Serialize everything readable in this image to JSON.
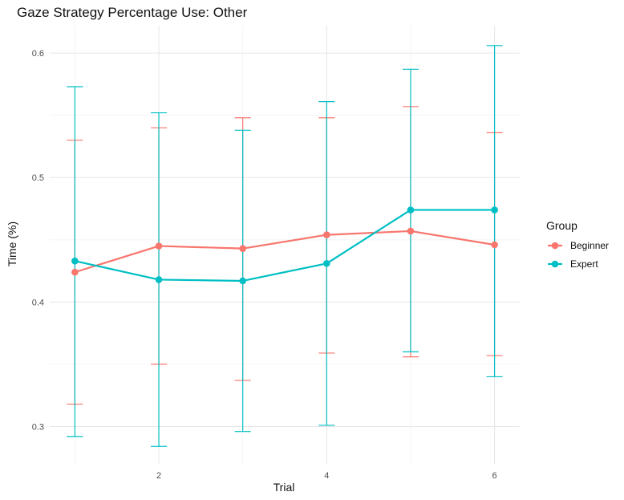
{
  "chart_data": {
    "type": "line",
    "title": "Gaze Strategy Percentage Use: Other",
    "xlabel": "Trial",
    "ylabel": "Time (%)",
    "x": [
      1,
      2,
      3,
      4,
      5,
      6
    ],
    "xticks": [
      2,
      4,
      6
    ],
    "yticks": [
      0.3,
      0.4,
      0.5,
      0.6
    ],
    "xlim": [
      0.7,
      6.3
    ],
    "ylim": [
      0.27,
      0.622
    ],
    "grid": true,
    "legend": {
      "title": "Group",
      "position": "right"
    },
    "series": [
      {
        "name": "Beginner",
        "color": "#F8766D",
        "values": [
          0.424,
          0.445,
          0.443,
          0.454,
          0.457,
          0.446
        ],
        "lower": [
          0.318,
          0.35,
          0.337,
          0.359,
          0.356,
          0.357
        ],
        "upper": [
          0.53,
          0.54,
          0.548,
          0.548,
          0.557,
          0.536
        ]
      },
      {
        "name": "Expert",
        "color": "#00BFC4",
        "values": [
          0.433,
          0.418,
          0.417,
          0.431,
          0.474,
          0.474
        ],
        "lower": [
          0.292,
          0.284,
          0.296,
          0.301,
          0.36,
          0.34
        ],
        "upper": [
          0.573,
          0.552,
          0.538,
          0.561,
          0.587,
          0.606
        ]
      }
    ]
  }
}
